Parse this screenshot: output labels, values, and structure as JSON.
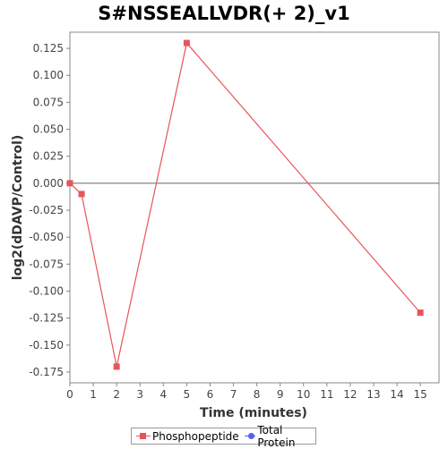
{
  "chart_data": {
    "type": "line",
    "title": "S#NSSEALLVDR(+ 2)_v1",
    "xlabel": "Time (minutes)",
    "ylabel": "log2(dDAVP/Control)",
    "xlim": [
      0,
      15.8
    ],
    "ylim": [
      -0.185,
      0.14
    ],
    "x_ticks": [
      0,
      1,
      2,
      3,
      4,
      5,
      6,
      7,
      8,
      9,
      10,
      11,
      12,
      13,
      14,
      15
    ],
    "y_ticks": [
      0.125,
      0.1,
      0.075,
      0.05,
      0.025,
      0.0,
      -0.025,
      -0.05,
      -0.075,
      -0.1,
      -0.125,
      -0.15,
      -0.175
    ],
    "y_tick_labels": [
      "0.125",
      "0.100",
      "0.075",
      "0.050",
      "0.025",
      "0.000",
      "-0.025",
      "-0.050",
      "-0.075",
      "-0.100",
      "-0.125",
      "-0.150",
      "-0.175"
    ],
    "zero_line": true,
    "grid": false,
    "legend_position": "bottom",
    "series": [
      {
        "name": "Phosphopeptide",
        "color": "#e8545a",
        "marker": "square",
        "x": [
          0,
          0.5,
          2,
          5,
          15
        ],
        "y": [
          0.0,
          -0.01,
          -0.17,
          0.13,
          -0.12
        ]
      },
      {
        "name": "Total Protein",
        "color": "#5560f0",
        "marker": "circle",
        "x": [],
        "y": []
      }
    ]
  }
}
